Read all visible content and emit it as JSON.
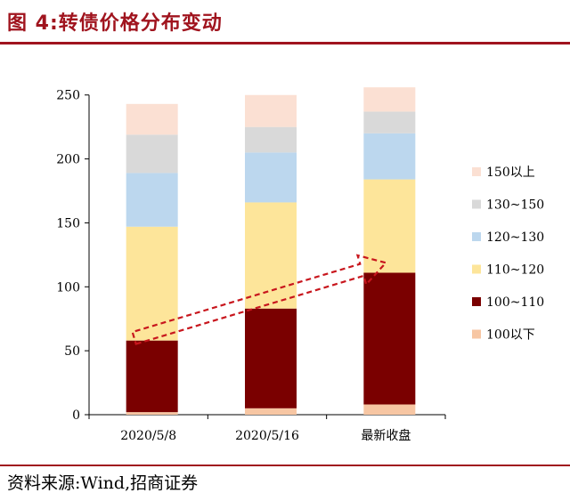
{
  "header": {
    "title": "图 4:转债价格分布变动"
  },
  "footer": {
    "source": "资料来源:Wind,招商证券"
  },
  "chart_data": {
    "type": "bar",
    "stacked": true,
    "categories": [
      "2020/5/8",
      "2020/5/16",
      "最新收盘"
    ],
    "series": [
      {
        "name": "100以下",
        "color": "#f7c6a3",
        "values": [
          2,
          5,
          8
        ]
      },
      {
        "name": "100~110",
        "color": "#7a0000",
        "values": [
          56,
          78,
          103
        ]
      },
      {
        "name": "110~120",
        "color": "#fde59a",
        "values": [
          89,
          83,
          73
        ]
      },
      {
        "name": "120~130",
        "color": "#bcd7ee",
        "values": [
          42,
          39,
          36
        ]
      },
      {
        "name": "130~150",
        "color": "#d9d9d9",
        "values": [
          30,
          20,
          17
        ]
      },
      {
        "name": "150以上",
        "color": "#fbe0d3",
        "values": [
          24,
          25,
          19
        ]
      }
    ],
    "yticks": [
      0,
      50,
      100,
      150,
      200,
      250
    ],
    "ylim": [
      0,
      270
    ],
    "legend_position": "right",
    "grid": false,
    "annotation": "dashed red arrow trending upward from 2020/5/8 to 最新收盘",
    "annotation_color": "#c8161d"
  }
}
